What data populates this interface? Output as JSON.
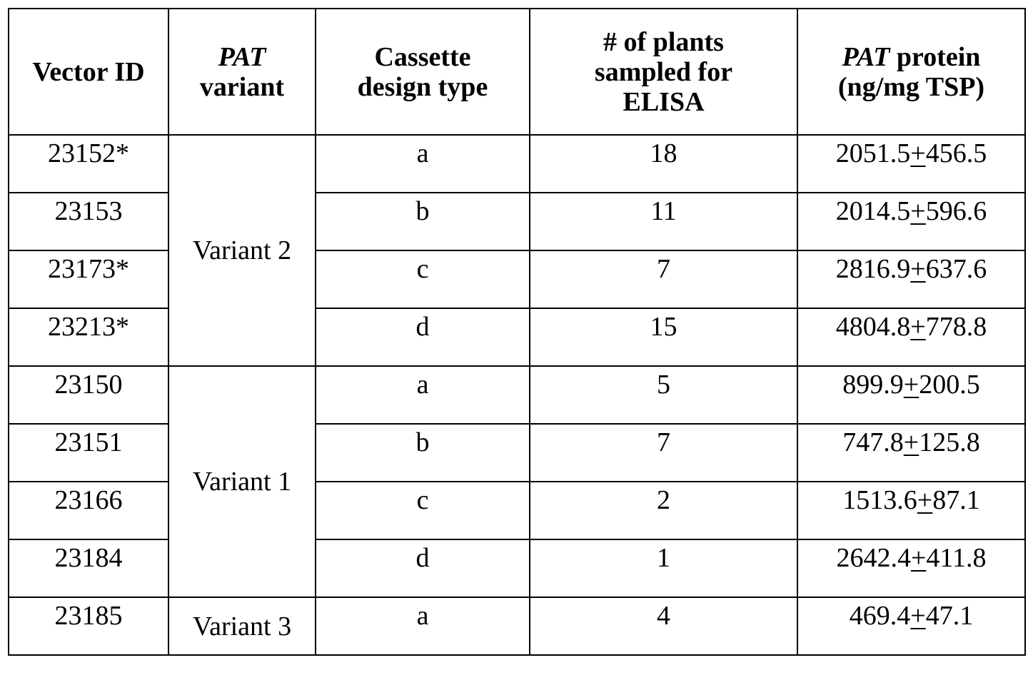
{
  "columns": {
    "vector_id": "Vector ID",
    "pat_variant_italic": "PAT",
    "pat_variant_rest": "variant",
    "cassette_line1": "Cassette",
    "cassette_line2": "design type",
    "plants_line1": "# of plants",
    "plants_line2": "sampled for",
    "plants_line3": "ELISA",
    "protein_italic": "PAT",
    "protein_rest": " protein",
    "protein_line2": "(ng/mg TSP)"
  },
  "groups": [
    {
      "variant": "Variant 2",
      "rows": [
        {
          "vector_id": "23152*",
          "cassette": "a",
          "plants": "18",
          "mean": "2051.5",
          "pm": "+",
          "sd": "456.5"
        },
        {
          "vector_id": "23153",
          "cassette": "b",
          "plants": "11",
          "mean": "2014.5",
          "pm": "+",
          "sd": "596.6"
        },
        {
          "vector_id": "23173*",
          "cassette": "c",
          "plants": "7",
          "mean": "2816.9",
          "pm": "+",
          "sd": "637.6"
        },
        {
          "vector_id": "23213*",
          "cassette": "d",
          "plants": "15",
          "mean": "4804.8",
          "pm": "+",
          "sd": "778.8"
        }
      ]
    },
    {
      "variant": "Variant 1",
      "rows": [
        {
          "vector_id": "23150",
          "cassette": "a",
          "plants": "5",
          "mean": "899.9",
          "pm": "+",
          "sd": "200.5"
        },
        {
          "vector_id": "23151",
          "cassette": "b",
          "plants": "7",
          "mean": "747.8",
          "pm": "+",
          "sd": "125.8"
        },
        {
          "vector_id": "23166",
          "cassette": "c",
          "plants": "2",
          "mean": "1513.6",
          "pm": "+",
          "sd": "87.1"
        },
        {
          "vector_id": "23184",
          "cassette": "d",
          "plants": "1",
          "mean": "2642.4",
          "pm": "+",
          "sd": "411.8"
        }
      ]
    },
    {
      "variant": "Variant 3",
      "rows": [
        {
          "vector_id": "23185",
          "cassette": "a",
          "plants": "4",
          "mean": "469.4",
          "pm": "+",
          "sd": "47.1"
        }
      ]
    }
  ]
}
